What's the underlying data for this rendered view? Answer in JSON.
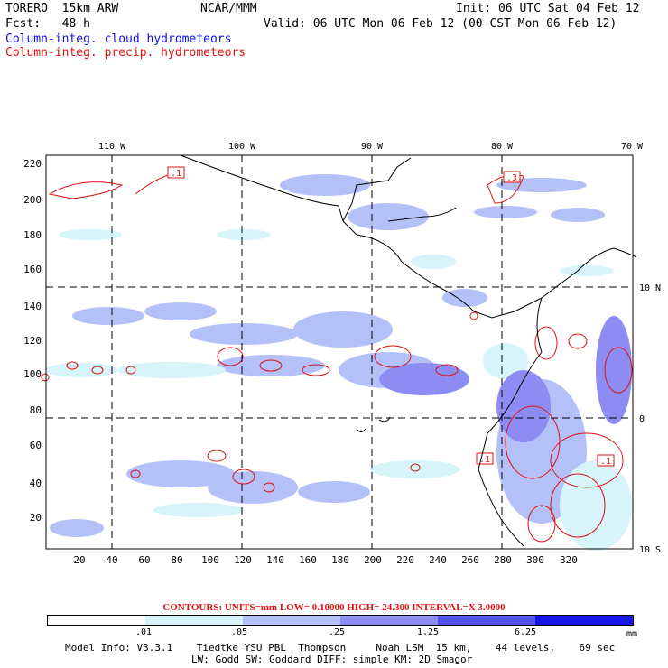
{
  "header": {
    "model": "TORERO  15km ARW",
    "center": "NCAR/MMM",
    "init": "Init: 06 UTC Sat 04 Feb 12",
    "fcst": "Fcst:   48 h",
    "valid": "Valid: 06 UTC Mon 06 Feb 12 (00 CST Mon 06 Feb 12)",
    "field1": "Column-integ. cloud hydrometeors",
    "field2": "Column-integ. precip. hydrometeors"
  },
  "map": {
    "lon_labels": [
      "110 W",
      "100 W",
      "90 W",
      "80 W",
      "70 W"
    ],
    "lat_labels": [
      "10 N",
      "0",
      "10 S"
    ],
    "y_ticks": [
      "20",
      "40",
      "60",
      "80",
      "100",
      "120",
      "140",
      "160",
      "180",
      "200",
      "220"
    ],
    "x_ticks": [
      "20",
      "40",
      "60",
      "80",
      "100",
      "120",
      "140",
      "160",
      "180",
      "200",
      "220",
      "240",
      "260",
      "280",
      "300",
      "320"
    ],
    "contour_boxes": [
      ".1",
      ".3",
      ".1",
      ".1"
    ]
  },
  "footer": {
    "contours": "CONTOURS:  UNITS=mm  LOW= 0.10000      HIGH=  24.300      INTERVAL=X  3.0000",
    "legend_values": [
      ".01",
      ".05",
      ".25",
      "1.25",
      "6.25"
    ],
    "legend_unit": "mm",
    "legend_colors": [
      "#ffffff",
      "#d6f4fa",
      "#b4c0f8",
      "#8c8cf2",
      "#5252ec",
      "#1818e6"
    ],
    "info1": "Model Info: V3.3.1    Tiedtke YSU PBL  Thompson     Noah LSM  15 km,    44 levels,    69 sec",
    "info2": "LW: Godd SW: Goddard DIFF: simple KM: 2D Smagor"
  }
}
